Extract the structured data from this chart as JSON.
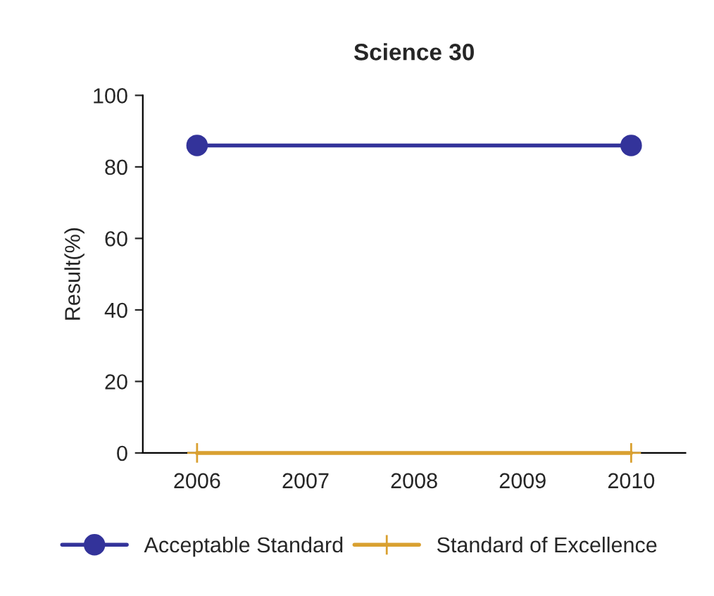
{
  "chart_data": {
    "type": "line",
    "title": "Science 30",
    "ylabel": "Result(%)",
    "x": [
      2006,
      2010
    ],
    "xlim": [
      2005.5,
      2010.5
    ],
    "xticks": [
      2006,
      2007,
      2008,
      2009,
      2010
    ],
    "ylim": [
      0,
      100
    ],
    "yticks": [
      0,
      20,
      40,
      60,
      80,
      100
    ],
    "grid": false,
    "legend": "bottom",
    "series": [
      {
        "name": "Acceptable Standard",
        "color": "#33339a",
        "marker": "circle",
        "values": [
          86,
          86
        ]
      },
      {
        "name": "Standard of Excellence",
        "color": "#d9a030",
        "marker": "cross",
        "values": [
          0,
          0
        ]
      }
    ]
  }
}
